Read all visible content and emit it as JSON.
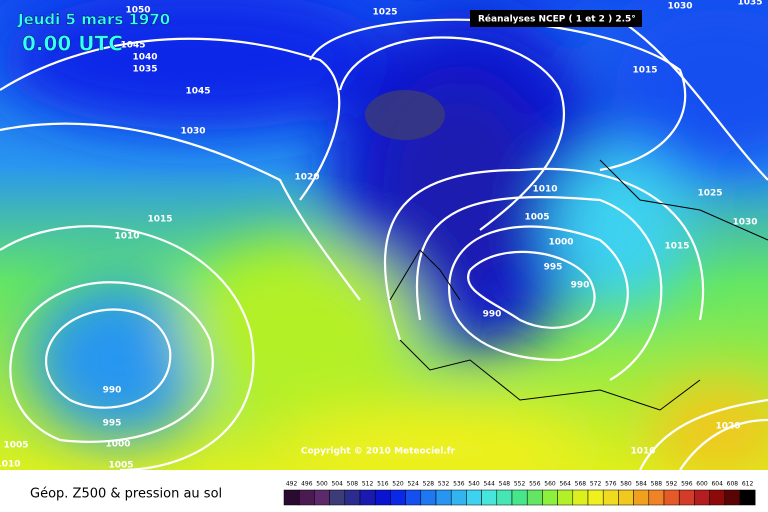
{
  "header": {
    "date": "Jeudi 5 mars 1970",
    "time": "0.00 UTC",
    "source": "Réanalyses NCEP ( 1 et 2 ) 2.5°"
  },
  "copyright": "Copyright © 2010 Meteociel.fr",
  "footer": {
    "title": "Géop. Z500 & pression au sol"
  },
  "scale": {
    "levels": [
      492,
      496,
      500,
      504,
      508,
      512,
      516,
      520,
      524,
      528,
      532,
      536,
      540,
      544,
      548,
      552,
      556,
      560,
      564,
      568,
      572,
      576,
      580,
      584,
      588,
      592,
      596,
      600,
      604,
      608,
      612
    ],
    "colors": [
      "#2a0a30",
      "#4a1a50",
      "#5c2a6a",
      "#3c3c78",
      "#2c2c90",
      "#1a1ab0",
      "#0a14d0",
      "#0a28e8",
      "#1450f0",
      "#1e78f0",
      "#2896f0",
      "#32b4f0",
      "#3cd2f0",
      "#46e6dc",
      "#46e6b4",
      "#46e68c",
      "#64e664",
      "#8cf03c",
      "#b4f028",
      "#dcf01e",
      "#f0f01e",
      "#f0dc1e",
      "#f0c81e",
      "#f0a01e",
      "#f08228",
      "#e65a28",
      "#d23c28",
      "#b41e1e",
      "#8c0a0a",
      "#5a0505",
      "#000000"
    ]
  },
  "isobars": [
    "1050",
    "1045",
    "1040",
    "1035",
    "1025",
    "1030",
    "1035",
    "1045",
    "1030",
    "1015",
    "1020",
    "1010",
    "1025",
    "1005",
    "1015",
    "1010",
    "1030",
    "1000",
    "1015",
    "995",
    "990",
    "990",
    "990",
    "995",
    "1000",
    "1005",
    "1010",
    "1020",
    "1010",
    "1005"
  ]
}
